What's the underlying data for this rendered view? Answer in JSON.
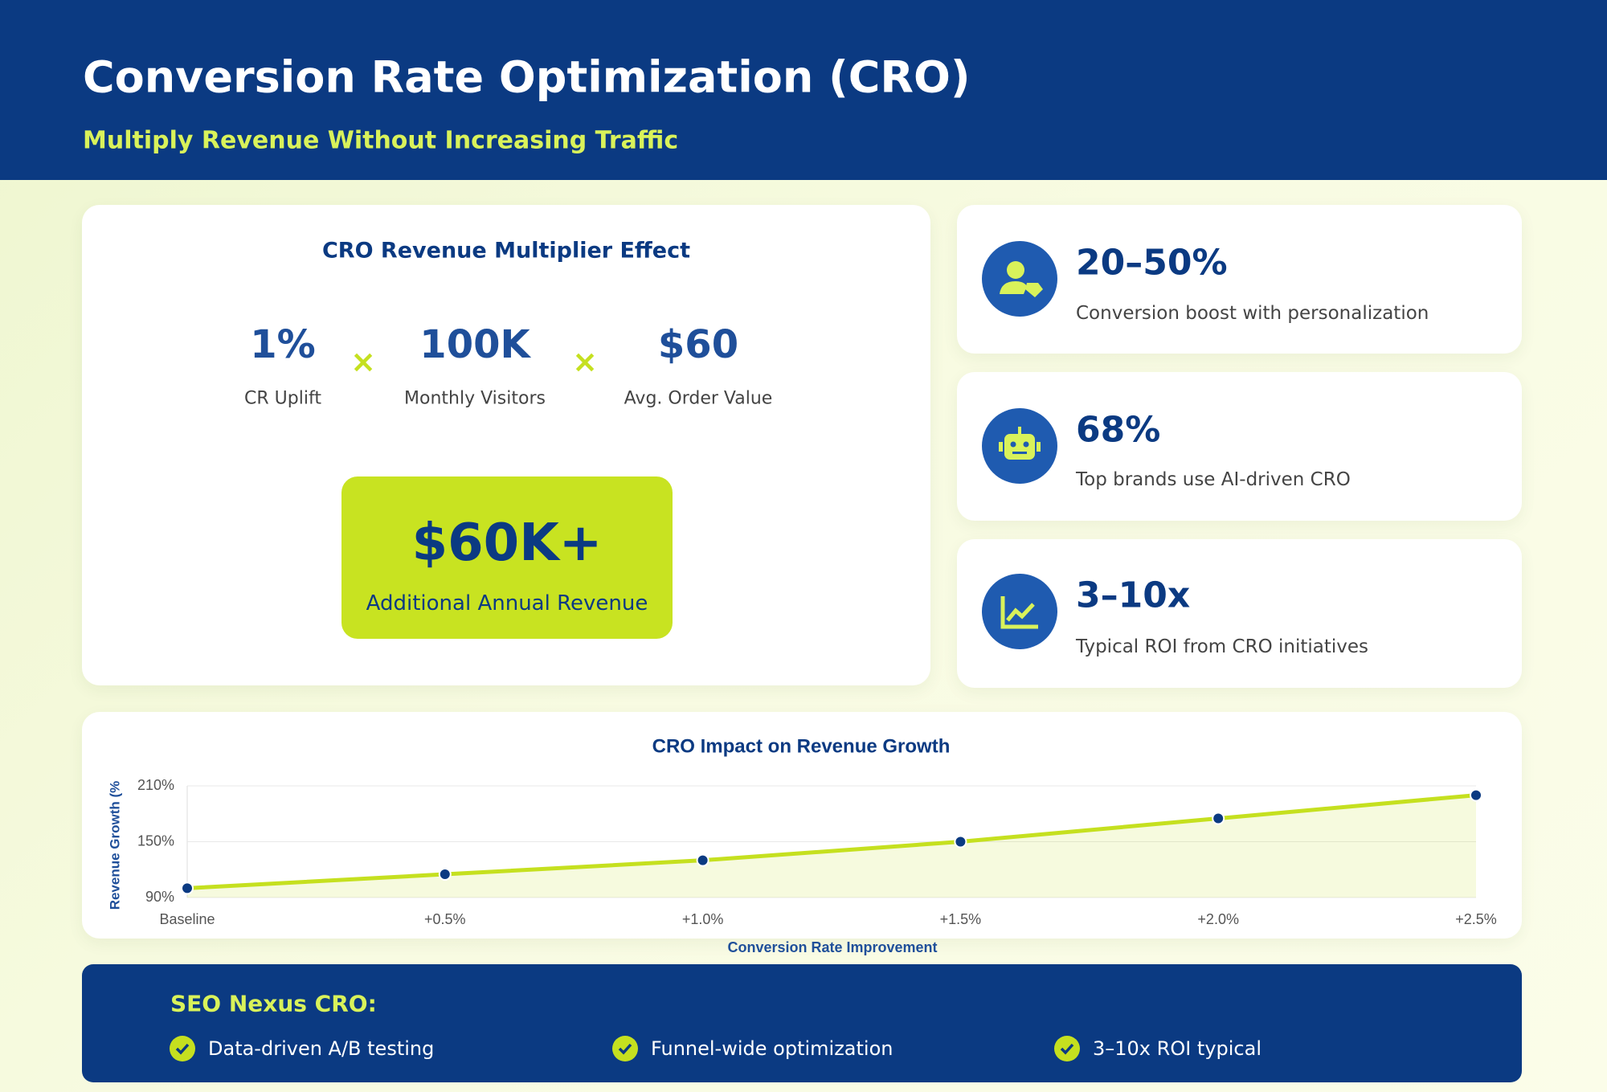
{
  "header": {
    "title": "Conversion Rate Optimization (CRO)",
    "subtitle": "Multiply Revenue Without Increasing Traffic"
  },
  "multiplier": {
    "title": "CRO Revenue Multiplier Effect",
    "factors": [
      {
        "value": "1%",
        "label": "CR Uplift"
      },
      {
        "value": "100K",
        "label": "Monthly Visitors"
      },
      {
        "value": "$60",
        "label": "Avg. Order Value"
      }
    ],
    "operator": "×",
    "result": {
      "value": "$60K+",
      "label": "Additional Annual Revenue"
    }
  },
  "stats": [
    {
      "value": "20–50%",
      "label": "Conversion boost with personalization"
    },
    {
      "value": "68%",
      "label": "Top brands use AI-driven CRO"
    },
    {
      "value": "3–10x",
      "label": "Typical ROI from CRO initiatives"
    }
  ],
  "chart_data": {
    "type": "line",
    "title": "CRO Impact on Revenue Growth",
    "x_label": "Conversion Rate Improvement",
    "y_label": "Revenue Growth (%",
    "categories": [
      "Baseline",
      "+0.5%",
      "+1.0%",
      "+1.5%",
      "+2.0%",
      "+2.5%"
    ],
    "values": [
      100,
      115,
      130,
      150,
      175,
      200
    ],
    "color": "#c5e01f",
    "marker_color": "#0b3a82",
    "ylim": [
      90,
      210
    ],
    "yticks": [
      {
        "value": 90,
        "label": "90%"
      },
      {
        "value": 150,
        "label": "150%"
      },
      {
        "value": 210,
        "label": "210%"
      }
    ],
    "grid": true
  },
  "footer": {
    "title": "SEO Nexus CRO:",
    "items": [
      "Data-driven A/B testing",
      "Funnel-wide optimization",
      "3–10x ROI typical"
    ]
  }
}
